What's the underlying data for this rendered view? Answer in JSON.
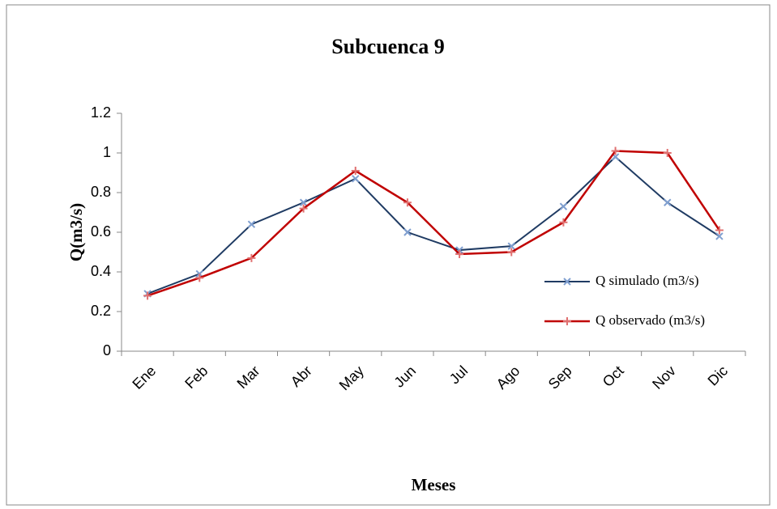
{
  "chart_data": {
    "type": "line",
    "title": "Subcuenca 9",
    "x_label": "Meses",
    "y_label": "Q(m3/s)",
    "categories": [
      "Ene",
      "Feb",
      "Mar",
      "Abr",
      "May",
      "Jun",
      "Jul",
      "Ago",
      "Sep",
      "Oct",
      "Nov",
      "Dic"
    ],
    "series": [
      {
        "name": "Q simulado (m3/s)",
        "color": "#1f3b63",
        "marker_color": "#7f9fd0",
        "marker": "x",
        "values": [
          0.29,
          0.39,
          0.64,
          0.75,
          0.87,
          0.6,
          0.51,
          0.53,
          0.73,
          0.98,
          0.75,
          0.58
        ]
      },
      {
        "name": "Q observado (m3/s)",
        "color": "#c00000",
        "marker_color": "#e07070",
        "marker": "+",
        "values": [
          0.28,
          0.37,
          0.47,
          0.72,
          0.91,
          0.75,
          0.49,
          0.5,
          0.65,
          1.01,
          1.0,
          0.61
        ]
      }
    ],
    "ylim": [
      0,
      1.2
    ],
    "yticks": [
      0,
      0.2,
      0.4,
      0.6,
      0.8,
      1,
      1.2
    ],
    "grid": false,
    "legend": "right"
  }
}
